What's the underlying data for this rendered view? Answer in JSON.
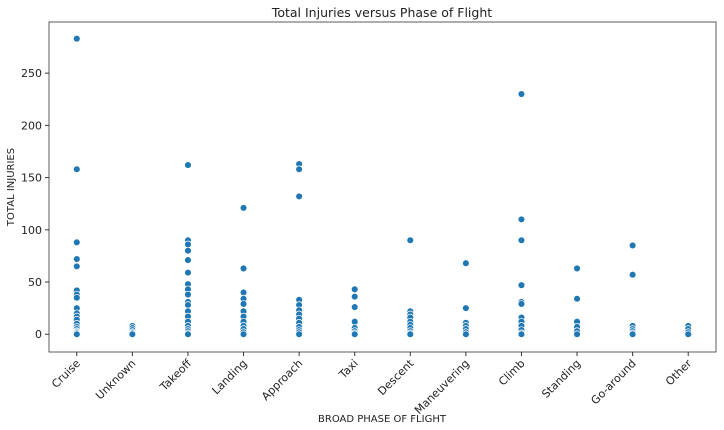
{
  "chart_data": {
    "type": "scatter",
    "title": "Total Injuries versus Phase of Flight",
    "x_label": "BROAD PHASE OF FLIGHT",
    "y_label": "TOTAL INJURIES",
    "categories": [
      "Cruise",
      "Unknown",
      "Takeoff",
      "Landing",
      "Approach",
      "Taxi",
      "Descent",
      "Maneuvering",
      "Climb",
      "Standing",
      "Go-around",
      "Other"
    ],
    "values": [
      [
        283,
        158,
        88,
        72,
        65,
        42,
        38,
        35,
        25,
        20,
        17,
        14,
        10,
        7,
        5,
        3,
        2,
        1,
        0
      ],
      [
        8,
        6,
        4,
        2,
        1,
        0
      ],
      [
        162,
        90,
        86,
        80,
        71,
        59,
        48,
        43,
        38,
        31,
        28,
        22,
        17,
        12,
        8,
        5,
        3,
        1,
        0
      ],
      [
        121,
        63,
        40,
        34,
        29,
        22,
        17,
        12,
        8,
        5,
        2,
        0
      ],
      [
        163,
        158,
        132,
        33,
        28,
        23,
        19,
        15,
        11,
        7,
        4,
        2,
        0
      ],
      [
        43,
        36,
        26,
        12,
        6,
        3,
        1,
        0
      ],
      [
        90,
        22,
        19,
        16,
        12,
        9,
        6,
        3,
        1,
        0
      ],
      [
        68,
        25,
        11,
        8,
        5,
        2,
        0
      ],
      [
        230,
        110,
        90,
        47,
        31,
        29,
        16,
        12,
        8,
        4,
        1,
        0
      ],
      [
        63,
        34,
        12,
        7,
        3,
        0
      ],
      [
        85,
        57,
        8,
        5,
        3,
        1,
        0
      ],
      [
        8,
        5,
        2,
        0
      ]
    ],
    "color": "#1f77b4",
    "ylim": [
      -17,
      299
    ],
    "yticks": [
      0,
      50,
      100,
      150,
      200,
      250
    ]
  }
}
